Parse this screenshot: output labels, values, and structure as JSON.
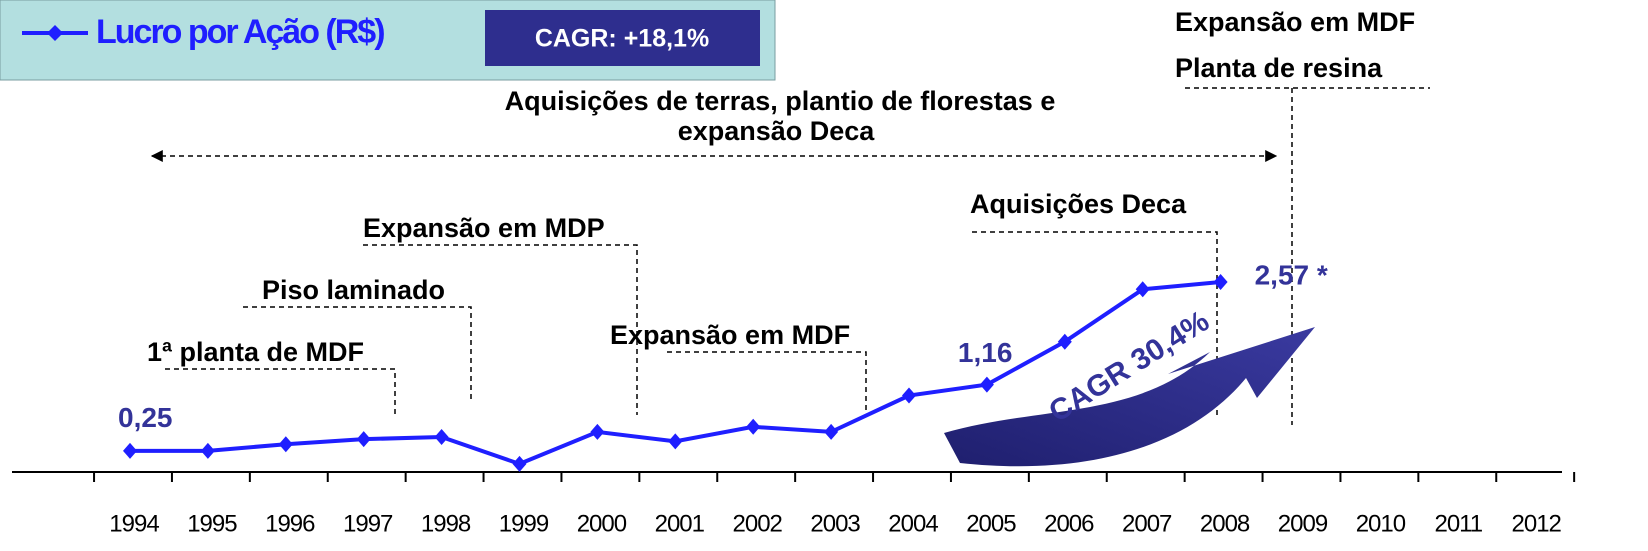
{
  "chart_data": {
    "type": "line",
    "categories": [
      "1994",
      "1995",
      "1996",
      "1997",
      "1998",
      "1999",
      "2000",
      "2001",
      "2002",
      "2003",
      "2004",
      "2005",
      "2006",
      "2007",
      "2008",
      "2009",
      "2010",
      "2011",
      "2012"
    ],
    "series": [
      {
        "name": "Lucro por Ação (R$)",
        "color": "#1f1fff",
        "values": [
          0.25,
          0.25,
          0.34,
          0.41,
          0.44,
          0.07,
          0.51,
          0.38,
          0.58,
          0.51,
          1.01,
          1.16,
          1.75,
          2.47,
          2.57,
          null,
          null,
          null,
          null
        ],
        "value_labels": [
          "0,25",
          null,
          null,
          null,
          null,
          null,
          null,
          null,
          null,
          null,
          null,
          "1,16",
          null,
          null,
          "2,57 *",
          null,
          null,
          null,
          null
        ]
      }
    ],
    "ylim": [
      0,
      4
    ],
    "cagr_box": "CAGR: +18,1%",
    "cagr_arrow": "CAGR 30,4%",
    "annotations": [
      "Expansão em MDF",
      "Planta de resina",
      "Aquisições de terras, plantio de florestas e",
      "expansão Deca",
      "Expansão em MDP",
      "Piso laminado",
      "1ª planta de MDF",
      "Expansão em MDF",
      "Aquisições Deca"
    ]
  }
}
